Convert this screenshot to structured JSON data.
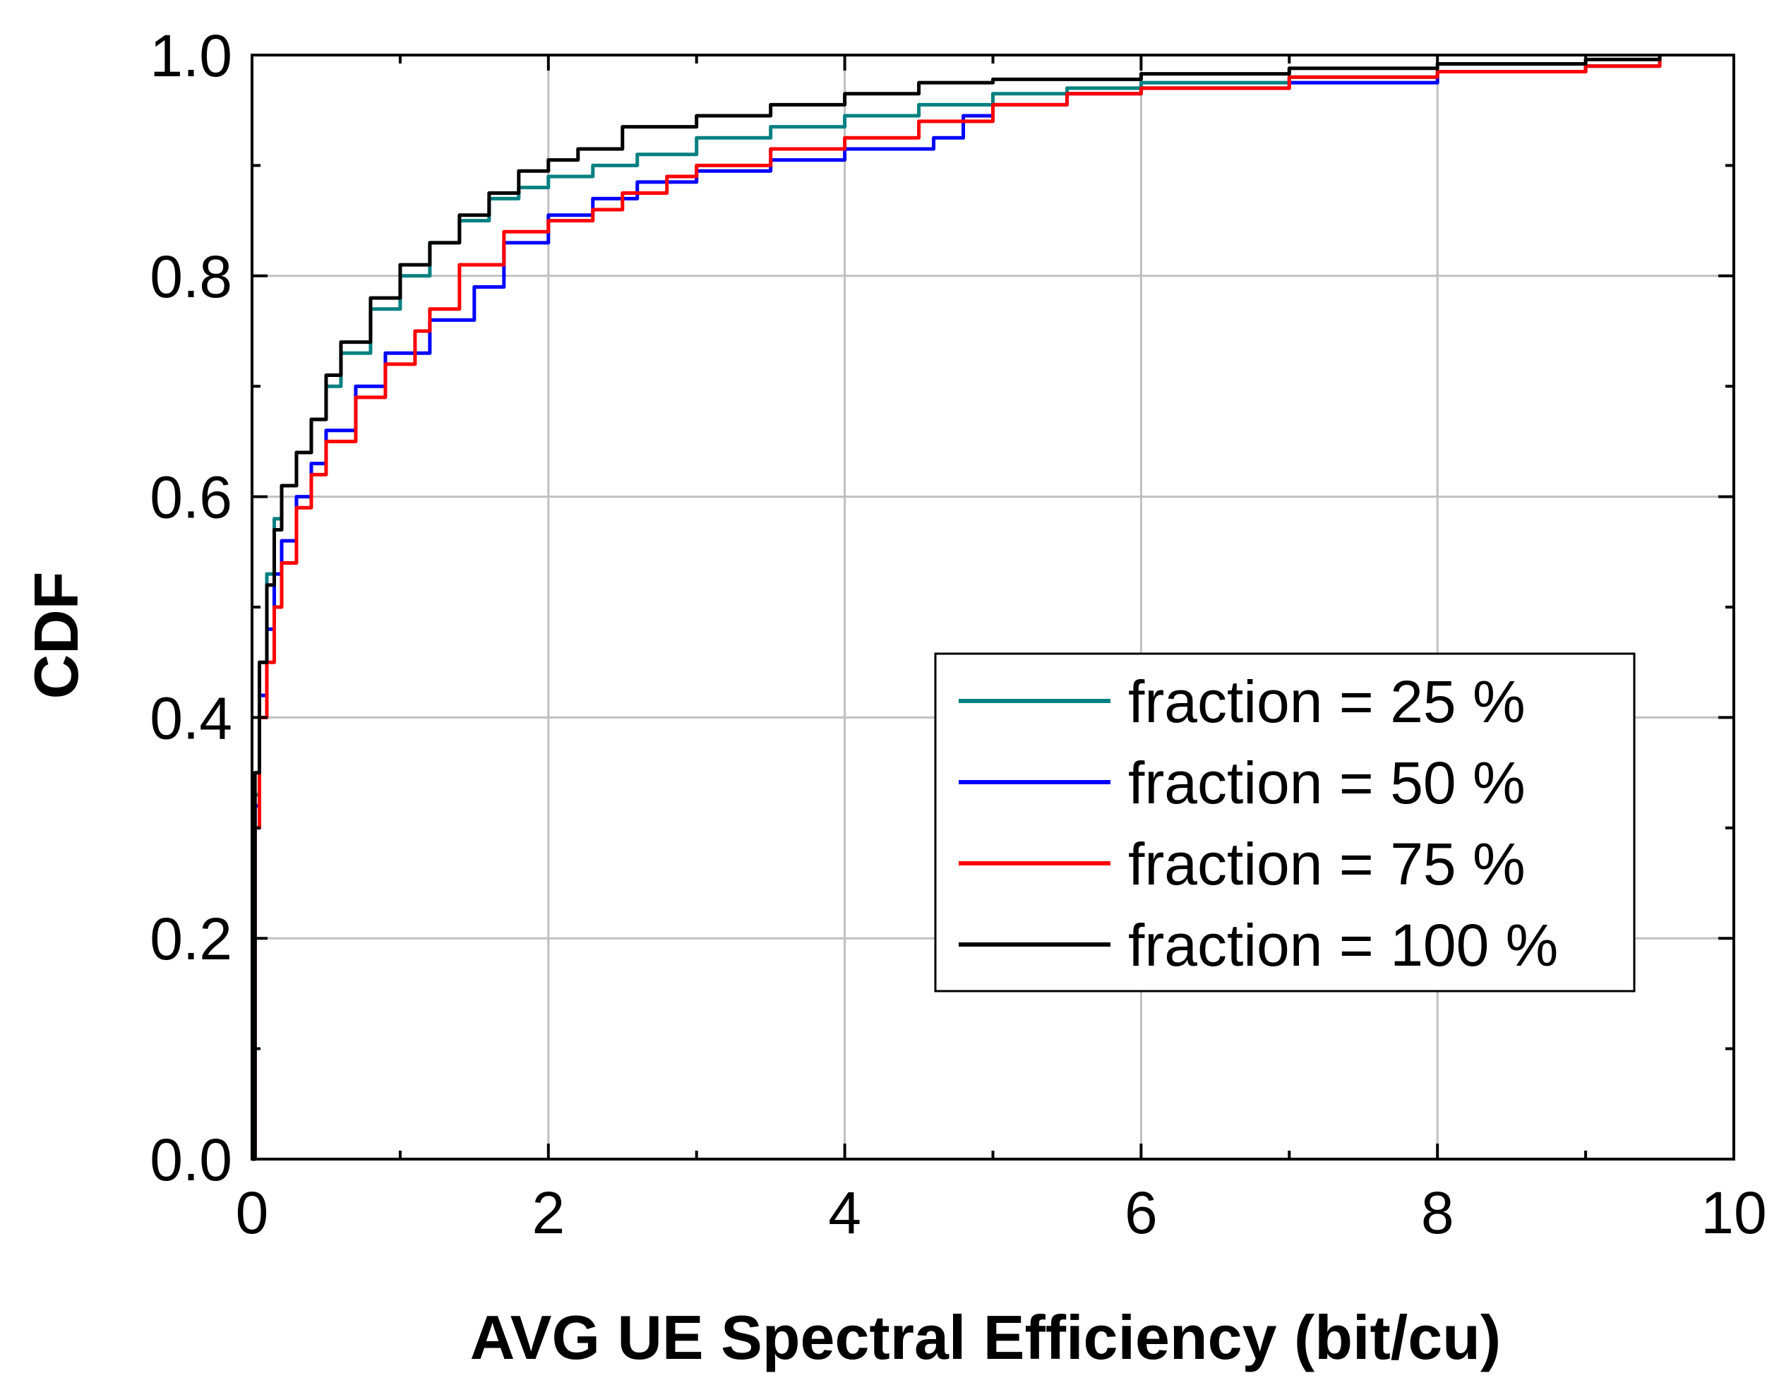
{
  "chart_data": {
    "type": "line",
    "title": "",
    "xlabel": "AVG UE Spectral Efficiency (bit/cu)",
    "ylabel": "CDF",
    "xlim": [
      0,
      10
    ],
    "ylim": [
      0,
      1
    ],
    "x_ticks": [
      0,
      2,
      4,
      6,
      8,
      10
    ],
    "x_tick_labels": [
      "0",
      "2",
      "4",
      "6",
      "8",
      "10"
    ],
    "y_ticks": [
      0,
      0.2,
      0.4,
      0.6,
      0.8,
      1.0
    ],
    "y_tick_labels": [
      "0.0",
      "0.2",
      "0.4",
      "0.6",
      "0.8",
      "1.0"
    ],
    "grid": true,
    "legend_position": "center-right",
    "series": [
      {
        "name": "fraction = 25 %",
        "color": "#008080",
        "x": [
          0,
          0.02,
          0.05,
          0.1,
          0.15,
          0.2,
          0.3,
          0.4,
          0.5,
          0.6,
          0.8,
          1.0,
          1.2,
          1.4,
          1.6,
          1.8,
          2.0,
          2.3,
          2.6,
          3.0,
          3.5,
          4.0,
          4.5,
          5.0,
          5.5,
          6.0,
          7.0,
          8.0,
          9.0,
          9.5
        ],
        "y": [
          0,
          0.33,
          0.45,
          0.53,
          0.58,
          0.61,
          0.64,
          0.67,
          0.7,
          0.73,
          0.77,
          0.8,
          0.83,
          0.85,
          0.87,
          0.88,
          0.89,
          0.9,
          0.91,
          0.925,
          0.935,
          0.945,
          0.955,
          0.965,
          0.97,
          0.975,
          0.98,
          0.985,
          0.99,
          1.0
        ]
      },
      {
        "name": "fraction = 50 %",
        "color": "#0000ff",
        "x": [
          0,
          0.02,
          0.05,
          0.1,
          0.15,
          0.2,
          0.3,
          0.4,
          0.5,
          0.7,
          0.9,
          1.2,
          1.5,
          1.7,
          2.0,
          2.3,
          2.6,
          3.0,
          3.5,
          4.0,
          4.6,
          4.8,
          5.0,
          5.5,
          6.0,
          7.0,
          8.0,
          9.0,
          9.5
        ],
        "y": [
          0,
          0.32,
          0.42,
          0.48,
          0.53,
          0.56,
          0.6,
          0.63,
          0.66,
          0.7,
          0.73,
          0.76,
          0.79,
          0.83,
          0.855,
          0.87,
          0.885,
          0.895,
          0.905,
          0.915,
          0.925,
          0.945,
          0.955,
          0.965,
          0.97,
          0.975,
          0.985,
          0.99,
          1.0
        ]
      },
      {
        "name": "fraction = 75 %",
        "color": "#ff0000",
        "x": [
          0,
          0.02,
          0.05,
          0.1,
          0.15,
          0.2,
          0.3,
          0.4,
          0.5,
          0.7,
          0.9,
          1.1,
          1.2,
          1.4,
          1.7,
          2.0,
          2.3,
          2.5,
          2.8,
          3.0,
          3.5,
          4.0,
          4.5,
          5.0,
          5.5,
          6.0,
          7.0,
          8.0,
          9.0,
          9.5
        ],
        "y": [
          0,
          0.3,
          0.4,
          0.45,
          0.5,
          0.54,
          0.59,
          0.62,
          0.65,
          0.69,
          0.72,
          0.75,
          0.77,
          0.81,
          0.84,
          0.85,
          0.86,
          0.875,
          0.89,
          0.9,
          0.915,
          0.925,
          0.94,
          0.955,
          0.965,
          0.97,
          0.98,
          0.985,
          0.99,
          1.0
        ]
      },
      {
        "name": "fraction = 100 %",
        "color": "#000000",
        "x": [
          0,
          0.02,
          0.05,
          0.1,
          0.15,
          0.2,
          0.3,
          0.4,
          0.5,
          0.6,
          0.8,
          1.0,
          1.2,
          1.4,
          1.6,
          1.8,
          2.0,
          2.2,
          2.5,
          3.0,
          3.5,
          4.0,
          4.5,
          5.0,
          6.0,
          7.0,
          8.0,
          9.0,
          9.5
        ],
        "y": [
          0,
          0.35,
          0.45,
          0.52,
          0.57,
          0.61,
          0.64,
          0.67,
          0.71,
          0.74,
          0.78,
          0.81,
          0.83,
          0.855,
          0.875,
          0.895,
          0.905,
          0.915,
          0.935,
          0.945,
          0.955,
          0.965,
          0.975,
          0.978,
          0.983,
          0.988,
          0.992,
          0.996,
          1.0
        ]
      }
    ]
  }
}
